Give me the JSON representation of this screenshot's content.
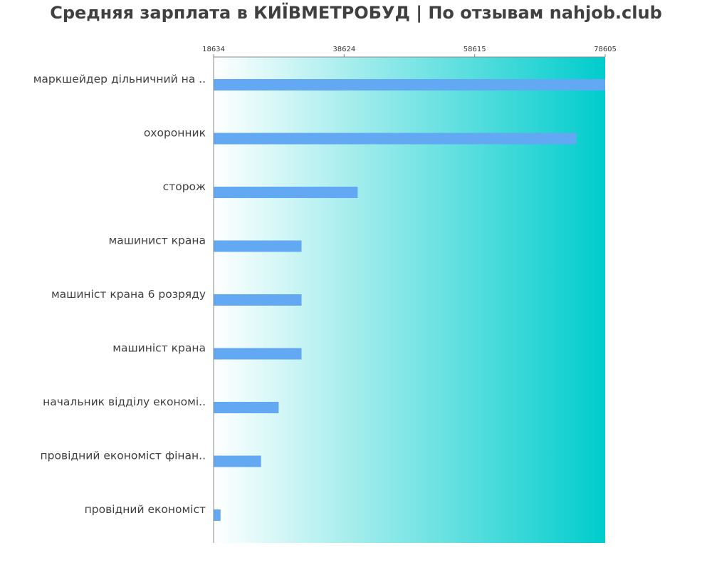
{
  "title": "Средняя зарплата в КИЇВМЕТРОБУД | По отзывам nahjob.club",
  "colors": {
    "bar": "#62a8f2",
    "gradient_start": "#ffffff",
    "gradient_end": "#00cccc",
    "axis": "#888888",
    "label_text": "#404040",
    "tick_text": "#333333"
  },
  "chart_data": {
    "type": "bar",
    "orientation": "horizontal",
    "title": "Средняя зарплата в КИЇВМЕТРОБУД | По отзывам nahjob.club",
    "xlabel": "",
    "ylabel": "",
    "xlim": [
      18634,
      78605
    ],
    "xticks": [
      18634,
      38624,
      58615,
      78605
    ],
    "tick_position": "top",
    "grid": false,
    "categories": [
      "маркшейдер дільничний на ..",
      "охоронник",
      "сторож",
      "машинист крана",
      "машиніст крана 6 розряду",
      "машиніст крана",
      "начальник відділу економі..",
      "провідний економіст фінан..",
      "провідний економіст"
    ],
    "values": [
      78605,
      74200,
      40700,
      32100,
      32100,
      32100,
      28600,
      25900,
      19700
    ]
  }
}
